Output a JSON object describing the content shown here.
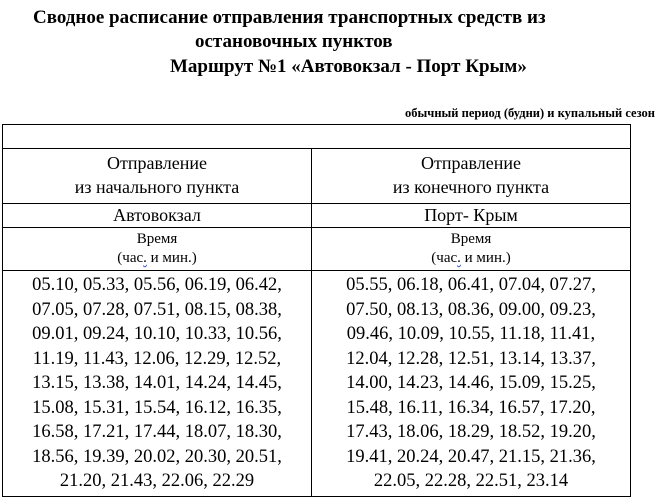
{
  "title": {
    "line1": "Сводное расписание отправления транспортных средств из",
    "line2": "остановочных пунктов",
    "line3": "Маршрут №1 «Автовокзал - Порт Крым»"
  },
  "subtitle": "обычный период (будни) и купальный сезон",
  "columns": [
    {
      "header_line1": "Отправление",
      "header_line2": "из начального пункта",
      "station": "Автовокзал",
      "time_label": "Время",
      "time_unit_a": "(час",
      "time_unit_b": ".",
      "time_unit_c": " и мин.)",
      "times": [
        "05.10, 05.33, 05.56, 06.19, 06.42,",
        "07.05, 07.28, 07.51, 08.15, 08.38,",
        "09.01, 09.24, 10.10, 10.33, 10.56,",
        "11.19, 11.43, 12.06, 12.29, 12.52,",
        "13.15, 13.38, 14.01, 14.24, 14.45,",
        "15.08, 15.31, 15.54, 16.12, 16.35,",
        "16.58, 17.21, 17.44, 18.07, 18.30,",
        "18.56, 19.39, 20.02, 20.30, 20.51,",
        "21.20, 21.43, 22.06, 22.29"
      ]
    },
    {
      "header_line1": "Отправление",
      "header_line2": "из конечного пункта",
      "station": "Порт- Крым",
      "time_label": "Время",
      "time_unit_a": "(час",
      "time_unit_b": ".",
      "time_unit_c": " и мин.)",
      "times": [
        "05.55, 06.18, 06.41, 07.04, 07.27,",
        "07.50, 08.13, 08.36, 09.00, 09.23,",
        "09.46, 10.09, 10.55, 11.18, 11.41,",
        "12.04, 12.28, 12.51, 13.14, 13.37,",
        "14.00, 14.23, 14.46, 15.09, 15.25,",
        "15.48, 16.11, 16.34, 16.57, 17.20,",
        "17.43, 18.06, 18.29, 18.52, 19.20,",
        "19.41, 20.24, 20.47, 21.15, 21.36,",
        "22.05, 22.28, 22.51, 23.14"
      ]
    }
  ]
}
